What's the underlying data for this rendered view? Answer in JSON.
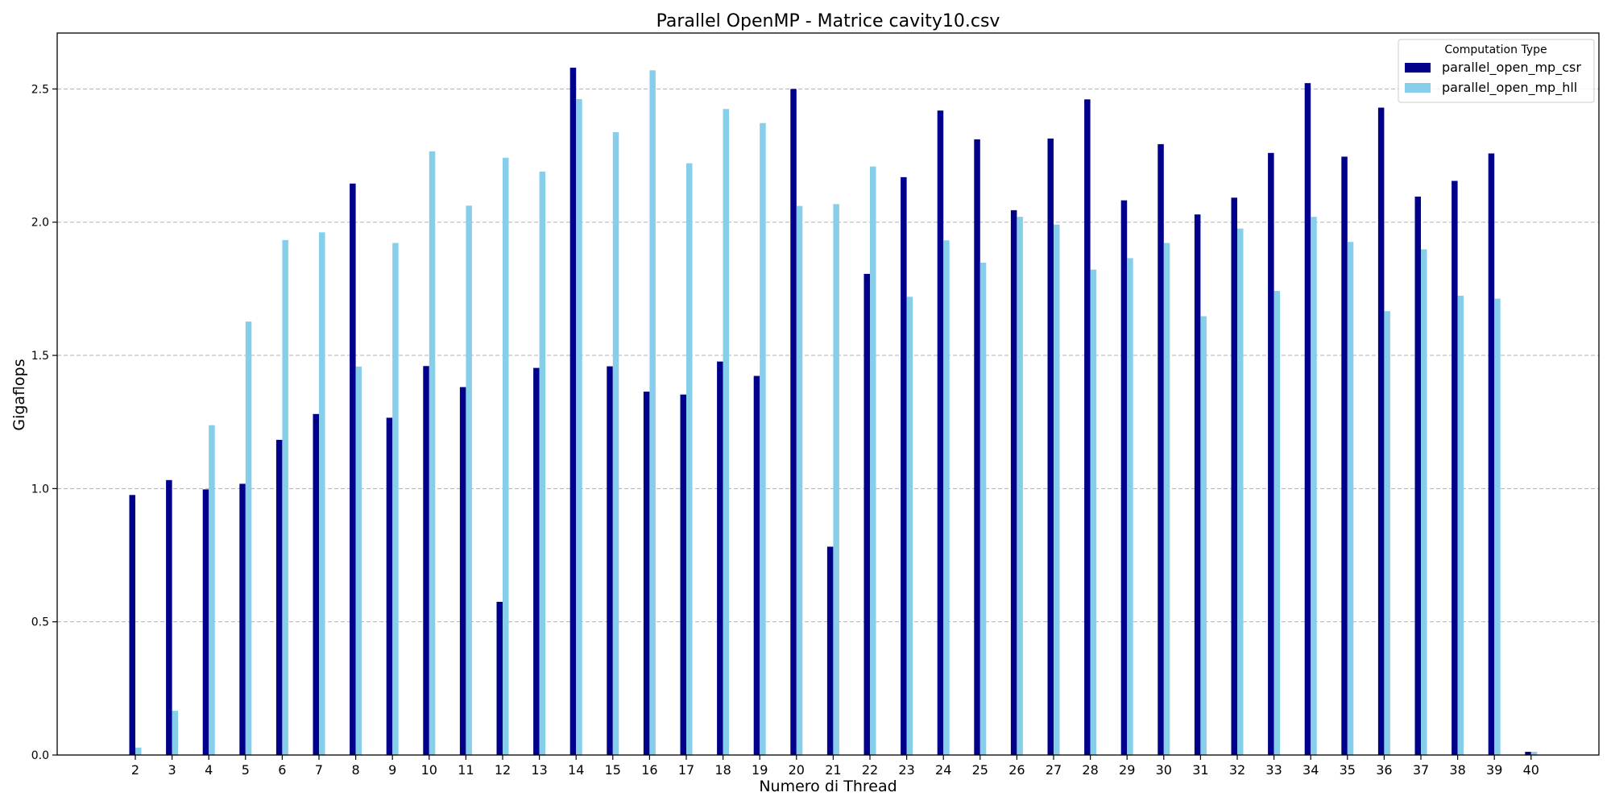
{
  "chart_data": {
    "type": "bar",
    "title": "Parallel OpenMP - Matrice cavity10.csv",
    "xlabel": "Numero di Thread",
    "ylabel": "Gigaflops",
    "ylim": [
      0,
      2.71
    ],
    "yticks": [
      "0.0",
      "0.5",
      "1.0",
      "1.5",
      "2.0",
      "2.5"
    ],
    "grid": "y-dashed",
    "legend": {
      "title": "Computation Type",
      "placement": "top-right"
    },
    "categories": [
      "2",
      "3",
      "4",
      "5",
      "6",
      "7",
      "8",
      "9",
      "10",
      "11",
      "12",
      "13",
      "14",
      "15",
      "16",
      "17",
      "18",
      "19",
      "20",
      "21",
      "22",
      "23",
      "24",
      "25",
      "26",
      "27",
      "28",
      "29",
      "30",
      "31",
      "32",
      "33",
      "34",
      "35",
      "36",
      "37",
      "38",
      "39",
      "40"
    ],
    "series": [
      {
        "name": "parallel_open_mp_csr",
        "color": "#00008b",
        "values": [
          0.976,
          1.032,
          0.997,
          1.018,
          1.183,
          1.28,
          2.145,
          1.266,
          1.46,
          1.381,
          0.575,
          1.453,
          2.58,
          1.459,
          1.364,
          1.353,
          1.477,
          1.423,
          2.5,
          0.782,
          1.806,
          2.169,
          2.419,
          2.311,
          2.045,
          2.314,
          2.461,
          2.082,
          2.293,
          2.029,
          2.092,
          2.26,
          2.522,
          2.246,
          2.43,
          2.096,
          2.155,
          2.258,
          0.012
        ]
      },
      {
        "name": "parallel_open_mp_hll",
        "color": "#87ceeb",
        "values": [
          0.028,
          0.166,
          1.238,
          1.627,
          1.933,
          1.962,
          1.458,
          1.922,
          2.266,
          2.062,
          2.242,
          2.19,
          2.462,
          2.338,
          2.57,
          2.221,
          2.425,
          2.372,
          2.061,
          2.068,
          2.209,
          1.72,
          1.932,
          1.848,
          2.02,
          1.991,
          1.822,
          1.865,
          1.922,
          1.647,
          1.976,
          1.742,
          2.02,
          1.926,
          1.666,
          1.898,
          1.724,
          1.713,
          0.012
        ]
      }
    ]
  }
}
